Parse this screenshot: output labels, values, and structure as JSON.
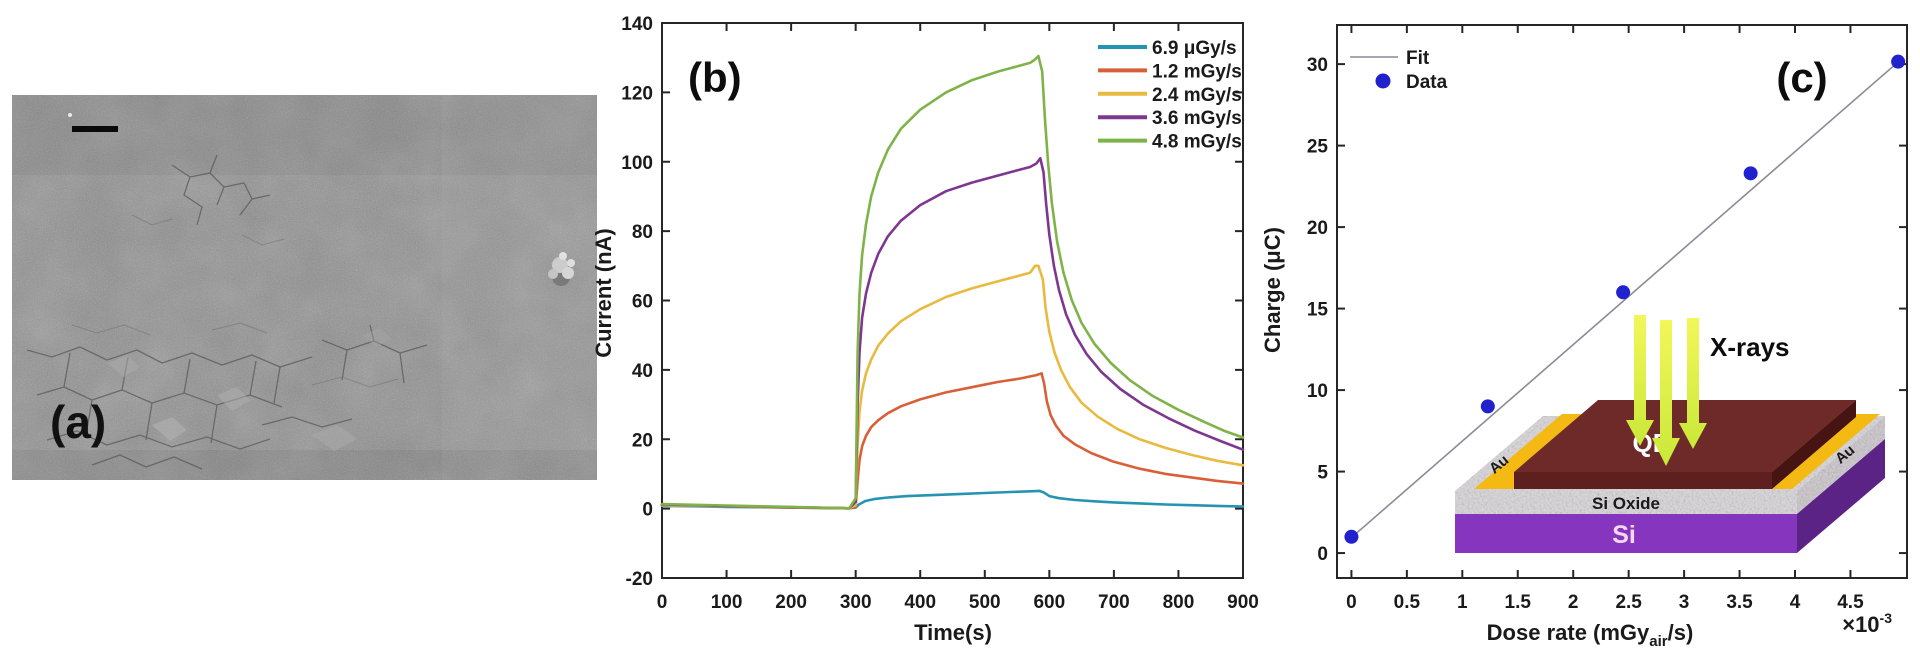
{
  "panels": {
    "a": "(a)",
    "b": "(b)",
    "c": "(c)"
  },
  "chart_data": [
    {
      "id": "b",
      "type": "line",
      "xlabel": "Time(s)",
      "ylabel": "Current (nA)",
      "xlim": [
        0,
        900
      ],
      "ylim": [
        -20,
        140
      ],
      "xticks": [
        0,
        100,
        200,
        300,
        400,
        500,
        600,
        700,
        800,
        900
      ],
      "yticks": [
        -20,
        0,
        20,
        40,
        60,
        80,
        100,
        120,
        140
      ],
      "grid": false,
      "legend_position": "top-right-inside",
      "series": [
        {
          "name": "6.9 μGy/s",
          "color": "#2594B2",
          "points": [
            [
              0,
              0.8
            ],
            [
              50,
              0.7
            ],
            [
              100,
              0.5
            ],
            [
              150,
              0.4
            ],
            [
              200,
              0.3
            ],
            [
              250,
              0.2
            ],
            [
              290,
              0.1
            ],
            [
              300,
              0.3
            ],
            [
              305,
              1.2
            ],
            [
              315,
              2.2
            ],
            [
              330,
              2.8
            ],
            [
              350,
              3.2
            ],
            [
              380,
              3.6
            ],
            [
              420,
              3.9
            ],
            [
              460,
              4.2
            ],
            [
              500,
              4.5
            ],
            [
              540,
              4.8
            ],
            [
              570,
              5.0
            ],
            [
              585,
              5.1
            ],
            [
              592,
              4.6
            ],
            [
              600,
              3.6
            ],
            [
              615,
              3.0
            ],
            [
              640,
              2.5
            ],
            [
              670,
              2.1
            ],
            [
              700,
              1.8
            ],
            [
              740,
              1.5
            ],
            [
              780,
              1.2
            ],
            [
              820,
              1.0
            ],
            [
              860,
              0.8
            ],
            [
              900,
              0.6
            ]
          ]
        },
        {
          "name": "1.2 mGy/s",
          "color": "#D95F39",
          "points": [
            [
              0,
              1.0
            ],
            [
              50,
              0.9
            ],
            [
              100,
              0.7
            ],
            [
              150,
              0.5
            ],
            [
              200,
              0.3
            ],
            [
              250,
              0.2
            ],
            [
              290,
              0.1
            ],
            [
              300,
              0.5
            ],
            [
              303,
              8
            ],
            [
              306,
              14
            ],
            [
              310,
              18
            ],
            [
              316,
              21
            ],
            [
              324,
              23.5
            ],
            [
              335,
              25.5
            ],
            [
              350,
              27.5
            ],
            [
              370,
              29.5
            ],
            [
              400,
              31.5
            ],
            [
              440,
              33.5
            ],
            [
              480,
              35
            ],
            [
              520,
              36.5
            ],
            [
              555,
              37.5
            ],
            [
              580,
              38.5
            ],
            [
              588,
              39
            ],
            [
              592,
              36
            ],
            [
              596,
              31
            ],
            [
              602,
              27
            ],
            [
              610,
              24
            ],
            [
              622,
              21
            ],
            [
              640,
              18.5
            ],
            [
              665,
              16
            ],
            [
              700,
              13.5
            ],
            [
              740,
              11.5
            ],
            [
              780,
              10
            ],
            [
              820,
              9
            ],
            [
              860,
              8
            ],
            [
              900,
              7.2
            ]
          ]
        },
        {
          "name": "2.4 mGy/s",
          "color": "#E8BA3F",
          "points": [
            [
              0,
              1.0
            ],
            [
              100,
              0.7
            ],
            [
              200,
              0.4
            ],
            [
              290,
              0.1
            ],
            [
              300,
              1
            ],
            [
              303,
              18
            ],
            [
              306,
              28
            ],
            [
              310,
              34
            ],
            [
              316,
              39
            ],
            [
              324,
              43
            ],
            [
              335,
              47
            ],
            [
              350,
              50.5
            ],
            [
              370,
              54
            ],
            [
              400,
              57.5
            ],
            [
              440,
              61
            ],
            [
              480,
              63.5
            ],
            [
              520,
              65.5
            ],
            [
              550,
              67
            ],
            [
              570,
              68
            ],
            [
              578,
              70
            ],
            [
              583,
              70
            ],
            [
              590,
              66
            ],
            [
              594,
              58
            ],
            [
              600,
              51
            ],
            [
              608,
              45
            ],
            [
              618,
              40
            ],
            [
              632,
              35
            ],
            [
              650,
              30.5
            ],
            [
              675,
              26.5
            ],
            [
              705,
              23
            ],
            [
              740,
              20
            ],
            [
              780,
              17.5
            ],
            [
              820,
              15.5
            ],
            [
              860,
              13.8
            ],
            [
              900,
              12.5
            ]
          ]
        },
        {
          "name": "3.6 mGy/s",
          "color": "#7E3790",
          "points": [
            [
              0,
              1.2
            ],
            [
              100,
              0.8
            ],
            [
              200,
              0.4
            ],
            [
              290,
              0.1
            ],
            [
              300,
              2
            ],
            [
              303,
              30
            ],
            [
              306,
              45
            ],
            [
              310,
              55
            ],
            [
              316,
              62
            ],
            [
              324,
              68
            ],
            [
              335,
              73.5
            ],
            [
              350,
              78.5
            ],
            [
              370,
              83
            ],
            [
              400,
              87.5
            ],
            [
              440,
              91.5
            ],
            [
              480,
              94
            ],
            [
              520,
              96
            ],
            [
              550,
              97.5
            ],
            [
              570,
              98.5
            ],
            [
              580,
              99.5
            ],
            [
              586,
              101
            ],
            [
              591,
              97
            ],
            [
              595,
              88
            ],
            [
              600,
              79
            ],
            [
              607,
              70
            ],
            [
              615,
              63
            ],
            [
              626,
              56
            ],
            [
              640,
              50
            ],
            [
              658,
              44.5
            ],
            [
              680,
              39.5
            ],
            [
              710,
              34.5
            ],
            [
              745,
              30
            ],
            [
              785,
              26
            ],
            [
              825,
              22.5
            ],
            [
              865,
              19.5
            ],
            [
              900,
              17
            ]
          ]
        },
        {
          "name": "4.8 mGy/s",
          "color": "#7FB347",
          "points": [
            [
              0,
              1.3
            ],
            [
              100,
              0.9
            ],
            [
              200,
              0.5
            ],
            [
              290,
              0.1
            ],
            [
              300,
              3
            ],
            [
              303,
              45
            ],
            [
              306,
              62
            ],
            [
              310,
              73
            ],
            [
              316,
              82
            ],
            [
              324,
              90
            ],
            [
              335,
              97
            ],
            [
              350,
              103.5
            ],
            [
              370,
              109.5
            ],
            [
              400,
              115
            ],
            [
              440,
              120
            ],
            [
              480,
              123.5
            ],
            [
              520,
              126
            ],
            [
              550,
              127.5
            ],
            [
              570,
              128.5
            ],
            [
              578,
              129.5
            ],
            [
              583,
              130.5
            ],
            [
              589,
              126
            ],
            [
              593,
              113
            ],
            [
              598,
              100
            ],
            [
              604,
              88
            ],
            [
              612,
              77
            ],
            [
              622,
              68
            ],
            [
              635,
              60
            ],
            [
              650,
              53.5
            ],
            [
              670,
              47.5
            ],
            [
              695,
              42
            ],
            [
              725,
              37
            ],
            [
              760,
              32.5
            ],
            [
              800,
              28.5
            ],
            [
              840,
              25
            ],
            [
              870,
              22.5
            ],
            [
              900,
              20.5
            ]
          ]
        }
      ]
    },
    {
      "id": "c",
      "type": "scatter",
      "xlabel_parts": [
        "Dose rate (mGy",
        "air",
        "/s)"
      ],
      "x_multiplier_parts": [
        "×10",
        "-3"
      ],
      "ylabel": "Charge (μC)",
      "xlim": [
        -0.13,
        5.01
      ],
      "ylim": [
        -1.53,
        32.4
      ],
      "xticks": [
        0,
        0.5,
        1,
        1.5,
        2,
        2.5,
        3,
        3.5,
        4,
        4.5
      ],
      "yticks": [
        0,
        5,
        10,
        15,
        20,
        25,
        30
      ],
      "grid": false,
      "legend": [
        {
          "name": "Fit",
          "type": "line",
          "color": "#8A8A9A"
        },
        {
          "name": "Data",
          "type": "dot",
          "color": "#2121CE"
        }
      ],
      "fit_line": {
        "x": [
          0.0,
          4.95
        ],
        "y": [
          0.95,
          30.25
        ],
        "color": "#8A8A9A"
      },
      "points_x": [
        0.0,
        1.23,
        2.45,
        3.6,
        4.93
      ],
      "points_y": [
        1.0,
        9.0,
        16.0,
        23.3,
        30.15
      ],
      "point_color": "#2121CE"
    }
  ],
  "inset": {
    "labels": {
      "qd": "QD",
      "au_left": "Au",
      "au_right": "Au",
      "si_oxide": "Si Oxide",
      "si": "Si",
      "xrays": "X-rays"
    },
    "colors": {
      "qd_top": "#6E2A28",
      "qd_front": "#5E1F1F",
      "qd_side": "#471414",
      "au": "#F5B914",
      "si_front": "#8636BE",
      "si_side": "#5C2387",
      "oxide": "#DBD7DB",
      "arrow_top": "#F2F75A",
      "arrow_bottom": "#C9E838"
    }
  }
}
